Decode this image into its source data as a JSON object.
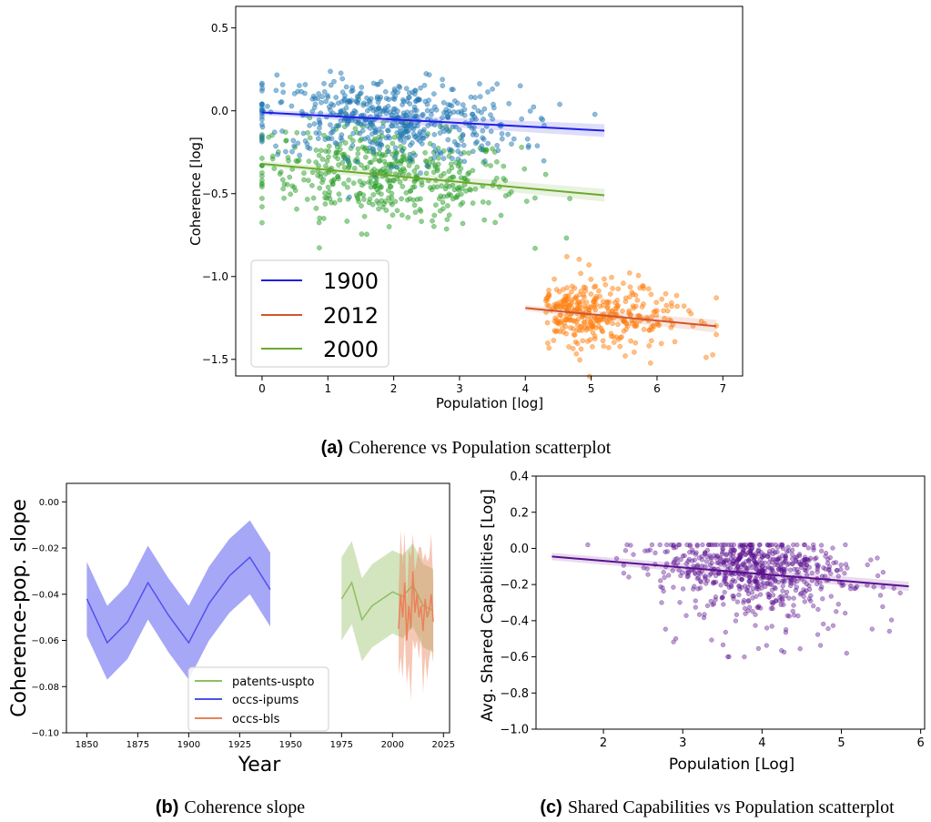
{
  "captions": {
    "a_letter": "(a)",
    "a_text": "Coherence vs Population scatterplot",
    "b_letter": "(b)",
    "b_text": "Coherence slope",
    "c_letter": "(c)",
    "c_text": "Shared Capabilities vs Population scatterplot"
  },
  "colors": {
    "line1900": "#1f1fe6",
    "line2012": "#d2552b",
    "line2000": "#6aaa2e",
    "pts1900": "#1f77b4",
    "pts2012": "#ff7f0e",
    "pts2000": "#2ca02c",
    "uspto": "#8fbf5f",
    "ipums": "#5050f0",
    "bls": "#e8835a",
    "purple": "#5b0f8f"
  },
  "chart_data": [
    {
      "id": "a",
      "type": "scatter",
      "xlabel": "Population [log]",
      "ylabel": "Coherence [log]",
      "xlim": [
        -0.4,
        7.3
      ],
      "ylim": [
        -1.6,
        0.63
      ],
      "xticks": [
        "0",
        "1",
        "2",
        "3",
        "4",
        "5",
        "6",
        "7"
      ],
      "yticks": [
        "0.5",
        "0.0",
        "−0.5",
        "−1.0",
        "−1.5"
      ],
      "legend_position": "lower-left",
      "series": [
        {
          "name": "1900",
          "x_range": [
            0,
            5.2
          ],
          "y_center": -0.05,
          "y_spread": 0.12,
          "n": 520,
          "fit": {
            "x": [
              0,
              5.2
            ],
            "y": [
              -0.01,
              -0.12
            ]
          }
        },
        {
          "name": "2012",
          "x_range": [
            4.0,
            6.9
          ],
          "y_center": -1.25,
          "y_spread": 0.1,
          "n": 360,
          "fit": {
            "x": [
              4.0,
              6.9
            ],
            "y": [
              -1.19,
              -1.3
            ]
          }
        },
        {
          "name": "2000",
          "x_range": [
            0,
            5.2
          ],
          "y_center": -0.42,
          "y_spread": 0.14,
          "n": 480,
          "fit": {
            "x": [
              0,
              5.2
            ],
            "y": [
              -0.32,
              -0.51
            ]
          }
        }
      ]
    },
    {
      "id": "b",
      "type": "line",
      "xlabel": "Year",
      "ylabel": "Coherence-pop. slope",
      "xlim": [
        1840,
        2028
      ],
      "ylim": [
        -0.1,
        0.008
      ],
      "xticks": [
        "1850",
        "1875",
        "1900",
        "1925",
        "1950",
        "1975",
        "2000",
        "2025"
      ],
      "yticks": [
        "0.00",
        "−0.02",
        "−0.04",
        "−0.06",
        "−0.08",
        "−0.10"
      ],
      "legend_position": "lower-center",
      "series": [
        {
          "name": "patents-uspto",
          "x": [
            1975,
            1980,
            1985,
            1990,
            1995,
            2000,
            2005,
            2010,
            2015,
            2020
          ],
          "y": [
            -0.042,
            -0.035,
            -0.051,
            -0.045,
            -0.042,
            -0.039,
            -0.041,
            -0.036,
            -0.045,
            -0.047
          ],
          "band": 0.018
        },
        {
          "name": "occs-ipums",
          "x": [
            1850,
            1860,
            1870,
            1880,
            1890,
            1900,
            1910,
            1920,
            1930,
            1940
          ],
          "y": [
            -0.042,
            -0.061,
            -0.052,
            -0.035,
            -0.049,
            -0.061,
            -0.044,
            -0.032,
            -0.024,
            -0.038
          ],
          "band": 0.016
        },
        {
          "name": "occs-bls",
          "x": [
            2003,
            2004,
            2005,
            2006,
            2007,
            2008,
            2009,
            2010,
            2011,
            2012,
            2013,
            2014,
            2015,
            2016,
            2017,
            2018,
            2019,
            2020
          ],
          "y": [
            -0.055,
            -0.04,
            -0.05,
            -0.035,
            -0.06,
            -0.045,
            -0.055,
            -0.03,
            -0.048,
            -0.04,
            -0.05,
            -0.045,
            -0.056,
            -0.042,
            -0.05,
            -0.047,
            -0.04,
            -0.052
          ],
          "band": 0.02
        }
      ]
    },
    {
      "id": "c",
      "type": "scatter",
      "xlabel": "Population [Log]",
      "ylabel": "Avg. Shared Capabilities [Log]",
      "xlim": [
        1.15,
        6.05
      ],
      "ylim": [
        -1.0,
        0.4
      ],
      "xticks": [
        "2",
        "3",
        "4",
        "5",
        "6"
      ],
      "yticks": [
        "0.4",
        "0.2",
        "0.0",
        "−0.2",
        "−0.4",
        "−0.6",
        "−0.8",
        "−1.0"
      ],
      "series": [
        {
          "x_range": [
            1.35,
            5.85
          ],
          "x_center": 3.9,
          "y_center": -0.13,
          "y_spread": 0.09,
          "n": 700,
          "fit": {
            "x": [
              1.35,
              5.85
            ],
            "y": [
              -0.045,
              -0.21
            ]
          }
        }
      ]
    }
  ]
}
